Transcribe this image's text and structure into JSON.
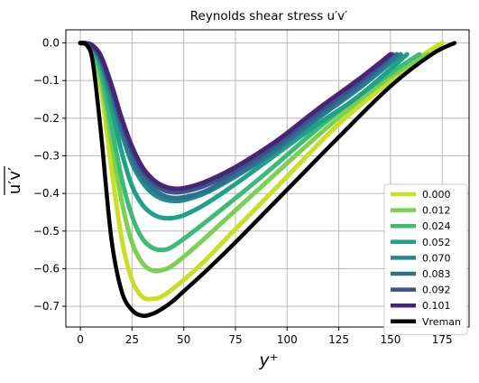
{
  "chart_data": {
    "type": "line",
    "title": "Reynolds shear stress u′v′",
    "xlabel": "y⁺",
    "ylabel": "u′v′",
    "xlim": [
      -7,
      188
    ],
    "ylim": [
      -0.755,
      0.035
    ],
    "xticks": [
      0,
      25,
      50,
      75,
      100,
      125,
      150,
      175
    ],
    "yticks": [
      0.0,
      -0.1,
      -0.2,
      -0.3,
      -0.4,
      -0.5,
      -0.6,
      -0.7
    ],
    "ytick_labels": [
      "0.0",
      "−0.1",
      "−0.2",
      "−0.3",
      "−0.4",
      "−0.5",
      "−0.6",
      "−0.7"
    ],
    "grid": true,
    "legend_position": "lower-right",
    "series": [
      {
        "name": "0.000",
        "color": "#c8e020",
        "x": [
          0,
          3,
          6,
          10,
          15,
          20,
          25,
          30,
          35,
          40,
          50,
          60,
          75,
          100,
          125,
          150,
          165,
          175
        ],
        "y": [
          0,
          -0.005,
          -0.03,
          -0.12,
          -0.33,
          -0.52,
          -0.63,
          -0.675,
          -0.68,
          -0.672,
          -0.63,
          -0.58,
          -0.495,
          -0.355,
          -0.215,
          -0.1,
          -0.035,
          0
        ]
      },
      {
        "name": "0.012",
        "color": "#7ad151",
        "x": [
          0,
          3,
          6,
          10,
          15,
          20,
          25,
          30,
          35,
          40,
          45,
          55,
          70,
          90,
          110,
          130,
          150,
          168
        ],
        "y": [
          0,
          -0.004,
          -0.025,
          -0.1,
          -0.26,
          -0.42,
          -0.53,
          -0.585,
          -0.605,
          -0.603,
          -0.59,
          -0.545,
          -0.47,
          -0.37,
          -0.27,
          -0.175,
          -0.09,
          -0.03
        ]
      },
      {
        "name": "0.024",
        "color": "#3bbb75",
        "x": [
          0,
          3,
          6,
          10,
          15,
          20,
          25,
          30,
          35,
          40,
          45,
          55,
          70,
          90,
          110,
          130,
          150,
          164
        ],
        "y": [
          0,
          -0.003,
          -0.02,
          -0.08,
          -0.22,
          -0.36,
          -0.46,
          -0.52,
          -0.545,
          -0.55,
          -0.54,
          -0.5,
          -0.435,
          -0.345,
          -0.25,
          -0.16,
          -0.08,
          -0.03
        ]
      },
      {
        "name": "0.052",
        "color": "#1fa187",
        "x": [
          0,
          3,
          6,
          10,
          15,
          20,
          25,
          30,
          35,
          40,
          45,
          50,
          60,
          75,
          95,
          115,
          135,
          158
        ],
        "y": [
          0,
          -0.002,
          -0.015,
          -0.06,
          -0.17,
          -0.29,
          -0.38,
          -0.43,
          -0.455,
          -0.465,
          -0.465,
          -0.458,
          -0.43,
          -0.375,
          -0.295,
          -0.215,
          -0.14,
          -0.03
        ]
      },
      {
        "name": "0.070",
        "color": "#23898e",
        "x": [
          0,
          3,
          6,
          10,
          15,
          20,
          25,
          30,
          35,
          40,
          45,
          50,
          60,
          75,
          95,
          115,
          135,
          155
        ],
        "y": [
          0,
          -0.002,
          -0.012,
          -0.05,
          -0.14,
          -0.24,
          -0.32,
          -0.37,
          -0.4,
          -0.415,
          -0.42,
          -0.418,
          -0.4,
          -0.355,
          -0.285,
          -0.2,
          -0.12,
          -0.03
        ]
      },
      {
        "name": "0.083",
        "color": "#2d718e",
        "x": [
          0,
          3,
          6,
          10,
          15,
          20,
          25,
          30,
          35,
          40,
          45,
          50,
          60,
          75,
          95,
          115,
          135,
          153
        ],
        "y": [
          0,
          -0.002,
          -0.01,
          -0.045,
          -0.13,
          -0.225,
          -0.3,
          -0.355,
          -0.385,
          -0.405,
          -0.412,
          -0.41,
          -0.395,
          -0.35,
          -0.28,
          -0.195,
          -0.115,
          -0.03
        ]
      },
      {
        "name": "0.092",
        "color": "#3a548c",
        "x": [
          0,
          3,
          6,
          10,
          15,
          20,
          25,
          30,
          35,
          40,
          45,
          50,
          60,
          75,
          95,
          115,
          135,
          151
        ],
        "y": [
          0,
          -0.001,
          -0.008,
          -0.04,
          -0.12,
          -0.21,
          -0.285,
          -0.34,
          -0.37,
          -0.39,
          -0.397,
          -0.395,
          -0.38,
          -0.34,
          -0.27,
          -0.185,
          -0.105,
          -0.03
        ]
      },
      {
        "name": "0.101",
        "color": "#482677",
        "x": [
          0,
          3,
          6,
          10,
          15,
          20,
          25,
          30,
          35,
          40,
          45,
          50,
          60,
          75,
          95,
          115,
          135,
          150
        ],
        "y": [
          0,
          -0.001,
          -0.007,
          -0.035,
          -0.11,
          -0.2,
          -0.275,
          -0.33,
          -0.362,
          -0.38,
          -0.387,
          -0.386,
          -0.37,
          -0.33,
          -0.26,
          -0.175,
          -0.095,
          -0.03
        ]
      },
      {
        "name": "Vreman",
        "color": "#000000",
        "x": [
          0,
          3,
          6,
          10,
          15,
          20,
          25,
          30,
          35,
          40,
          45,
          50,
          60,
          75,
          100,
          125,
          150,
          170,
          181
        ],
        "y": [
          0,
          -0.005,
          -0.05,
          -0.24,
          -0.52,
          -0.66,
          -0.71,
          -0.725,
          -0.72,
          -0.705,
          -0.685,
          -0.66,
          -0.61,
          -0.53,
          -0.39,
          -0.25,
          -0.115,
          -0.03,
          0
        ]
      }
    ]
  }
}
